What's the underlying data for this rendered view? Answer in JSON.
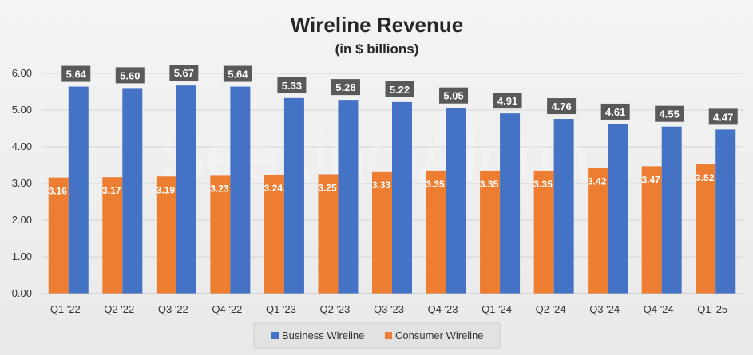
{
  "watermark": "Seeking Alpha",
  "colors": {
    "business": "#4472C4",
    "consumer": "#ED7D31",
    "label_box": "#595959",
    "grid": "#d4d4d4",
    "axis": "#bfbfbf"
  },
  "chart_data": {
    "type": "bar",
    "title": "Wireline Revenue",
    "subtitle": "(in $ billions)",
    "xlabel": "",
    "ylabel": "",
    "ylim": [
      0,
      6
    ],
    "yticks": [
      "0.00",
      "1.00",
      "2.00",
      "3.00",
      "4.00",
      "5.00",
      "6.00"
    ],
    "grid": true,
    "legend_position": "bottom",
    "categories": [
      "Q1 '22",
      "Q2 '22",
      "Q3 '22",
      "Q4 '22",
      "Q1 '23",
      "Q2 '23",
      "Q3 '23",
      "Q4 '23",
      "Q1 '24",
      "Q2 '24",
      "Q3 '24",
      "Q4 '24",
      "Q1 '25"
    ],
    "series": [
      {
        "name": "Consumer Wireline",
        "values": [
          3.16,
          3.17,
          3.19,
          3.23,
          3.24,
          3.25,
          3.33,
          3.35,
          3.35,
          3.35,
          3.42,
          3.47,
          3.52
        ],
        "labels": [
          "3.16",
          "3.17",
          "3.19",
          "3.23",
          "3.24",
          "3.25",
          "3.33",
          "3.35",
          "3.35",
          "3.35",
          "3.42",
          "3.47",
          "3.52"
        ]
      },
      {
        "name": "Business Wireline",
        "values": [
          5.64,
          5.6,
          5.67,
          5.64,
          5.33,
          5.28,
          5.22,
          5.05,
          4.91,
          4.76,
          4.61,
          4.55,
          4.47
        ],
        "labels": [
          "5.64",
          "5.60",
          "5.67",
          "5.64",
          "5.33",
          "5.28",
          "5.22",
          "5.05",
          "4.91",
          "4.76",
          "4.61",
          "4.55",
          "4.47"
        ]
      }
    ],
    "legend": [
      "Business Wireline",
      "Consumer Wireline"
    ]
  }
}
